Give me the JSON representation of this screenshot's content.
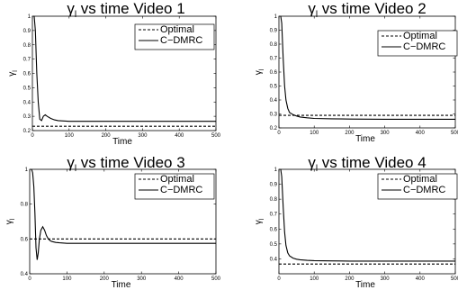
{
  "chart_data": [
    {
      "type": "line",
      "title": "γ",
      "title_sub": "l",
      "title_rest": " vs time Video 1",
      "xlabel": "Time",
      "ylabel": "γ",
      "ylabel_sub": "l",
      "xlim": [
        0,
        500
      ],
      "ylim": [
        0.2,
        1.0
      ],
      "xticks": [
        0,
        100,
        200,
        300,
        400,
        500
      ],
      "yticks": [
        0.2,
        0.3,
        0.4,
        0.5,
        0.6,
        0.7,
        0.8,
        0.9,
        1
      ],
      "ytick_labels": [
        "0.2",
        "0.3",
        "0.4",
        "0.5",
        "0.6",
        "0.7",
        "0.8",
        "0.9",
        "1"
      ],
      "legend": [
        "Optimal",
        "C−DMRC"
      ],
      "series": [
        {
          "name": "Optimal",
          "style": "dashed",
          "x": [
            0,
            500
          ],
          "y": [
            0.23,
            0.23
          ]
        },
        {
          "name": "C−DMRC",
          "style": "solid",
          "x": [
            5,
            8,
            12,
            16,
            20,
            25,
            30,
            35,
            40,
            50,
            60,
            70,
            80,
            100,
            150,
            200,
            300,
            400,
            500
          ],
          "y": [
            1.0,
            0.9,
            0.6,
            0.4,
            0.28,
            0.27,
            0.3,
            0.31,
            0.3,
            0.285,
            0.275,
            0.27,
            0.268,
            0.265,
            0.265,
            0.265,
            0.265,
            0.265,
            0.265
          ]
        }
      ]
    },
    {
      "type": "line",
      "title": "γ",
      "title_sub": "l",
      "title_rest": " vs time Video 2",
      "xlabel": "Time",
      "ylabel": "γ",
      "ylabel_sub": "l",
      "xlim": [
        0,
        500
      ],
      "ylim": [
        0.2,
        1.0
      ],
      "xticks": [
        0,
        100,
        200,
        300,
        400,
        500
      ],
      "yticks": [
        0.2,
        0.3,
        0.4,
        0.5,
        0.6,
        0.7,
        0.8,
        0.9,
        1
      ],
      "ytick_labels": [
        "0.2",
        "0.3",
        "0.4",
        "0.5",
        "0.6",
        "0.7",
        "0.8",
        "0.9",
        "1"
      ],
      "legend": [
        "Optimal",
        "C−DMRC"
      ],
      "series": [
        {
          "name": "Optimal",
          "style": "dashed",
          "x": [
            0,
            500
          ],
          "y": [
            0.29,
            0.29
          ]
        },
        {
          "name": "C−DMRC",
          "style": "solid",
          "x": [
            5,
            8,
            12,
            16,
            20,
            25,
            30,
            40,
            50,
            60,
            80,
            100,
            150,
            200,
            300,
            400,
            500
          ],
          "y": [
            1.0,
            0.95,
            0.7,
            0.5,
            0.4,
            0.34,
            0.31,
            0.295,
            0.285,
            0.278,
            0.272,
            0.268,
            0.265,
            0.263,
            0.262,
            0.262,
            0.262
          ]
        }
      ]
    },
    {
      "type": "line",
      "title": "γ",
      "title_sub": "l",
      "title_rest": " vs time Video 3",
      "xlabel": "Time",
      "ylabel": "γ",
      "ylabel_sub": "l",
      "xlim": [
        0,
        500
      ],
      "ylim": [
        0.4,
        1.0
      ],
      "xticks": [
        0,
        100,
        200,
        300,
        400,
        500
      ],
      "yticks": [
        0.4,
        0.6,
        0.8,
        1
      ],
      "ytick_labels": [
        "0.4",
        "0.6",
        "0.8",
        "1"
      ],
      "legend": [
        "Optimal",
        "C−DMRC"
      ],
      "series": [
        {
          "name": "Optimal",
          "style": "dashed",
          "x": [
            0,
            500
          ],
          "y": [
            0.6,
            0.6
          ]
        },
        {
          "name": "C−DMRC",
          "style": "solid",
          "x": [
            5,
            8,
            11,
            14,
            17,
            20,
            23,
            26,
            30,
            35,
            40,
            45,
            50,
            55,
            60,
            70,
            80,
            100,
            150,
            200,
            300,
            400,
            500
          ],
          "y": [
            1.0,
            0.98,
            0.9,
            0.75,
            0.55,
            0.48,
            0.52,
            0.6,
            0.65,
            0.67,
            0.65,
            0.62,
            0.6,
            0.59,
            0.585,
            0.58,
            0.578,
            0.575,
            0.575,
            0.575,
            0.575,
            0.575,
            0.575
          ]
        }
      ]
    },
    {
      "type": "line",
      "title": "γ",
      "title_sub": "l",
      "title_rest": " vs time Video 4",
      "xlabel": "Time",
      "ylabel": "γ",
      "ylabel_sub": "l",
      "xlim": [
        0,
        500
      ],
      "ylim": [
        0.3,
        1.0
      ],
      "xticks": [
        0,
        100,
        200,
        300,
        400,
        500
      ],
      "yticks": [
        0.4,
        0.5,
        0.6,
        0.7,
        0.8,
        0.9,
        1
      ],
      "ytick_labels": [
        "0.4",
        "0.5",
        "0.6",
        "0.7",
        "0.8",
        "0.9",
        "1"
      ],
      "legend": [
        "Optimal",
        "C−DMRC"
      ],
      "series": [
        {
          "name": "Optimal",
          "style": "dashed",
          "x": [
            0,
            500
          ],
          "y": [
            0.365,
            0.365
          ]
        },
        {
          "name": "C−DMRC",
          "style": "solid",
          "x": [
            5,
            8,
            12,
            16,
            20,
            25,
            30,
            40,
            50,
            60,
            80,
            100,
            150,
            200,
            300,
            400,
            500
          ],
          "y": [
            1.0,
            0.95,
            0.75,
            0.58,
            0.49,
            0.44,
            0.42,
            0.405,
            0.398,
            0.394,
            0.39,
            0.388,
            0.386,
            0.385,
            0.385,
            0.385,
            0.385
          ]
        }
      ]
    }
  ]
}
